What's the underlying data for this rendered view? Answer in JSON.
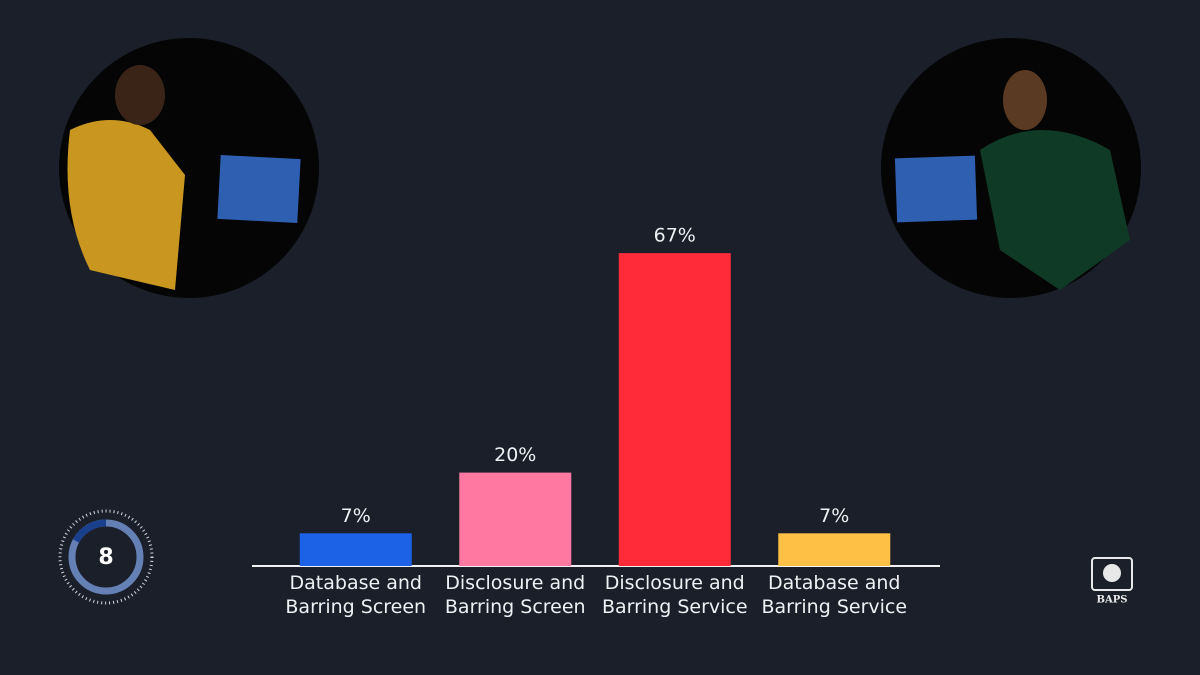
{
  "chart_data": {
    "type": "bar",
    "categories": [
      "Database and Barring Screen",
      "Disclosure and Barring Screen",
      "Disclosure and Barring Service",
      "Database and Barring Service"
    ],
    "values": [
      7,
      20,
      67,
      7
    ],
    "value_labels": [
      "7%",
      "20%",
      "67%",
      "7%"
    ],
    "colors": [
      "#1c62e6",
      "#ff78a2",
      "#ff2b38",
      "#ffc145"
    ]
  },
  "timer": 8,
  "logo_text": "BAPS"
}
